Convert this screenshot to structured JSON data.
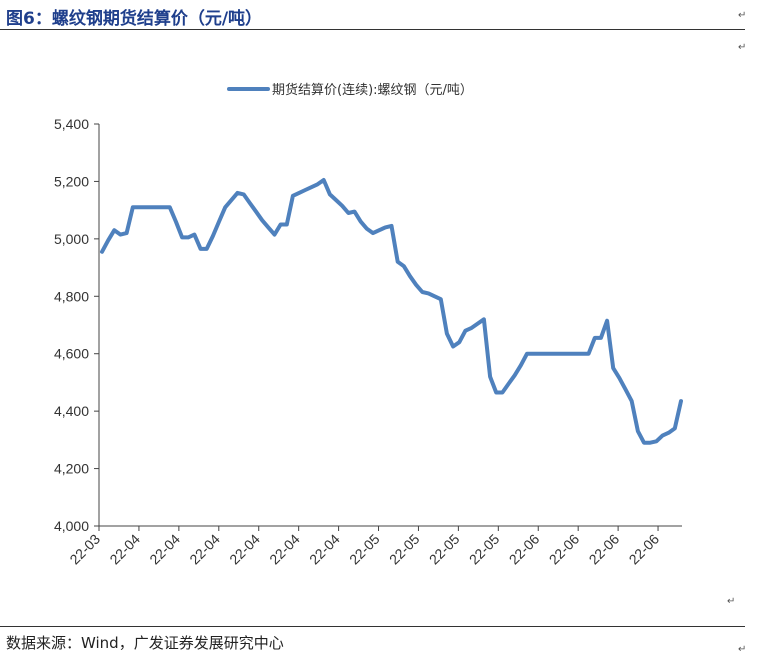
{
  "figure": {
    "title": "图6：螺纹钢期货结算价（元/吨）",
    "source": "数据来源：Wind，广发证券发展研究中心",
    "para_mark": "↵"
  },
  "chart_data": {
    "type": "line",
    "title": "",
    "xlabel": "",
    "ylabel": "",
    "ylim": [
      4000,
      5400
    ],
    "yticks": [
      "4,000",
      "4,200",
      "4,400",
      "4,600",
      "4,800",
      "5,000",
      "5,200",
      "5,400"
    ],
    "ytick_values": [
      4000,
      4200,
      4400,
      4600,
      4800,
      5000,
      5200,
      5400
    ],
    "xtick_labels": [
      "22-03",
      "22-04",
      "22-04",
      "22-04",
      "22-04",
      "22-04",
      "22-04",
      "22-05",
      "22-05",
      "22-05",
      "22-05",
      "22-06",
      "22-06",
      "22-06",
      "22-06"
    ],
    "legend_position": "top-center",
    "grid": false,
    "color": "#4f81bd",
    "series": [
      {
        "name": "期货结算价(连续):螺纹钢（元/吨）",
        "values": [
          4955,
          4995,
          5030,
          5015,
          5020,
          5110,
          5110,
          5110,
          5110,
          5110,
          5110,
          5110,
          5060,
          5005,
          5005,
          5015,
          4965,
          4965,
          5010,
          5060,
          5110,
          5135,
          5160,
          5155,
          5125,
          5095,
          5065,
          5040,
          5015,
          5050,
          5050,
          5150,
          5160,
          5170,
          5180,
          5190,
          5205,
          5155,
          5135,
          5115,
          5090,
          5095,
          5060,
          5035,
          5020,
          5030,
          5040,
          5045,
          4920,
          4905,
          4870,
          4840,
          4815,
          4810,
          4800,
          4790,
          4670,
          4625,
          4640,
          4680,
          4690,
          4705,
          4720,
          4520,
          4465,
          4465,
          4495,
          4525,
          4560,
          4600,
          4600,
          4600,
          4600,
          4600,
          4600,
          4600,
          4600,
          4600,
          4600,
          4600,
          4655,
          4655,
          4715,
          4550,
          4515,
          4475,
          4435,
          4330,
          4290,
          4290,
          4295,
          4315,
          4325,
          4340,
          4435
        ]
      }
    ]
  }
}
